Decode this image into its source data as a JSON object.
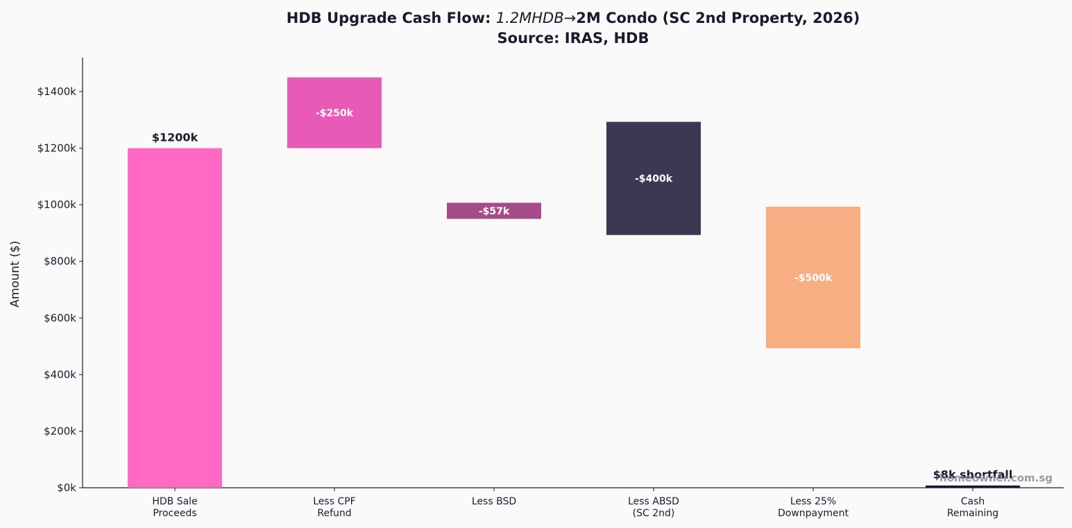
{
  "title": {
    "part1": "HDB Upgrade Cash Flow: ",
    "part2": "1.2MHDB",
    "arrow": "→",
    "part3": "2M Condo (SC 2nd Property, 2026)",
    "subtitle": "Source: IRAS, HDB"
  },
  "watermark": "homeowner.com.sg",
  "chart_data": {
    "type": "bar",
    "subtype": "waterfall",
    "ylabel": "Amount ($)",
    "ylim": [
      0,
      1520
    ],
    "yticks": [
      0,
      200,
      400,
      600,
      800,
      1000,
      1200,
      1400
    ],
    "ytick_labels": [
      "$0k",
      "$200k",
      "$400k",
      "$600k",
      "$800k",
      "$1000k",
      "$1200k",
      "$1400k"
    ],
    "categories": [
      [
        "HDB Sale",
        "Proceeds"
      ],
      [
        "Less CPF",
        "Refund"
      ],
      [
        "Less BSD"
      ],
      [
        "Less ABSD",
        "(SC 2nd)"
      ],
      [
        "Less 25%",
        "Downpayment"
      ],
      [
        "Cash",
        "Remaining"
      ]
    ],
    "bars": [
      {
        "bottom": 0,
        "top": 1200,
        "label": "$1200k",
        "label_pos": "above",
        "color": "#ff69c4"
      },
      {
        "bottom": 1200,
        "top": 1450,
        "label": "-$250k",
        "label_pos": "inside",
        "color": "#e75ab5"
      },
      {
        "bottom": 950,
        "top": 1007,
        "label": "-$57k",
        "label_pos": "inside",
        "color": "#a64d89"
      },
      {
        "bottom": 893,
        "top": 1293,
        "label": "-$400k",
        "label_pos": "inside",
        "color": "#3d3852"
      },
      {
        "bottom": 493,
        "top": 993,
        "label": "-$500k",
        "label_pos": "inside",
        "color": "#f6ae82"
      },
      {
        "bottom": 0,
        "top": 8,
        "label": "$8k shortfall",
        "label_pos": "above",
        "color": "#1a1a2e"
      }
    ],
    "grid": false,
    "legend": "none"
  }
}
